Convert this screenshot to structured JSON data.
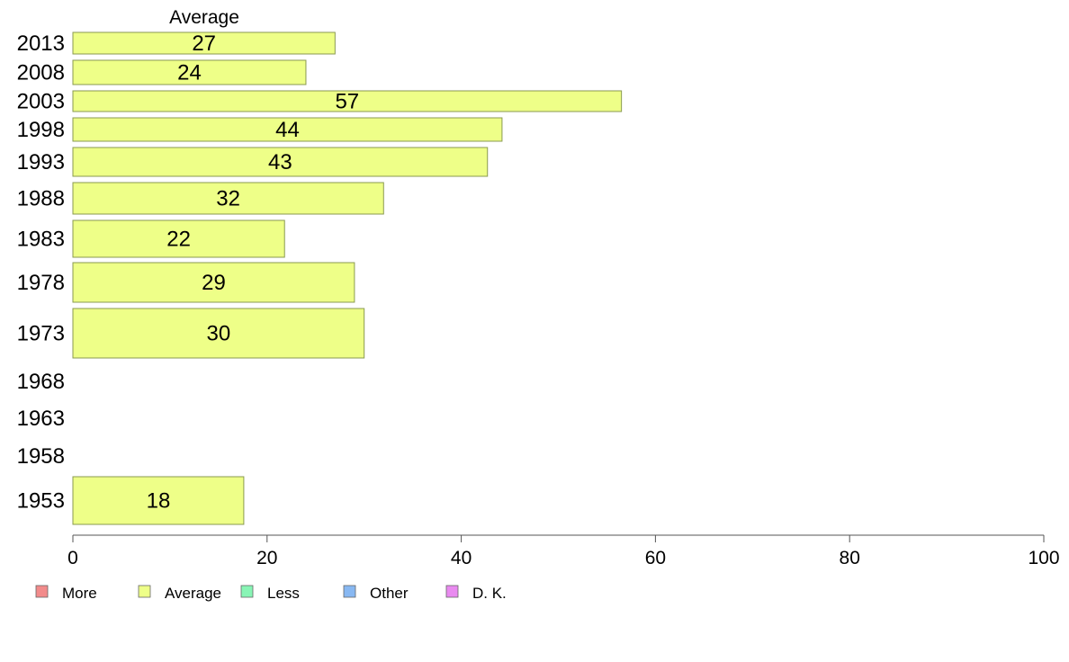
{
  "chart_data": {
    "type": "bar",
    "orientation": "horizontal",
    "title": "",
    "column_header": "Average",
    "categories": [
      "2013",
      "2008",
      "2003",
      "1998",
      "1993",
      "1988",
      "1983",
      "1978",
      "1973",
      "1968",
      "1963",
      "1958",
      "1953"
    ],
    "series": [
      {
        "name": "Average",
        "color": "#eeff88",
        "values": [
          27,
          24,
          57,
          44,
          43,
          32,
          22,
          29,
          30,
          null,
          null,
          null,
          18
        ],
        "bar_values": [
          27,
          24,
          56.5,
          44.2,
          42.7,
          32,
          21.8,
          29,
          30,
          null,
          null,
          null,
          17.6
        ],
        "labels": [
          "27",
          "24",
          "57",
          "44",
          "43",
          "32",
          "22",
          "29",
          "30",
          "",
          "",
          "",
          "18"
        ]
      }
    ],
    "xlim": [
      0,
      100
    ],
    "x_ticks": [
      "0",
      "20",
      "40",
      "60",
      "80",
      "100"
    ],
    "grid": false,
    "legend_position": "bottom",
    "legend": [
      {
        "label": "More",
        "color": "#f28b8b"
      },
      {
        "label": "Average",
        "color": "#eeff88"
      },
      {
        "label": "Less",
        "color": "#88f5b5"
      },
      {
        "label": "Other",
        "color": "#88b8f2"
      },
      {
        "label": "D. K.",
        "color": "#e98af0"
      }
    ]
  }
}
